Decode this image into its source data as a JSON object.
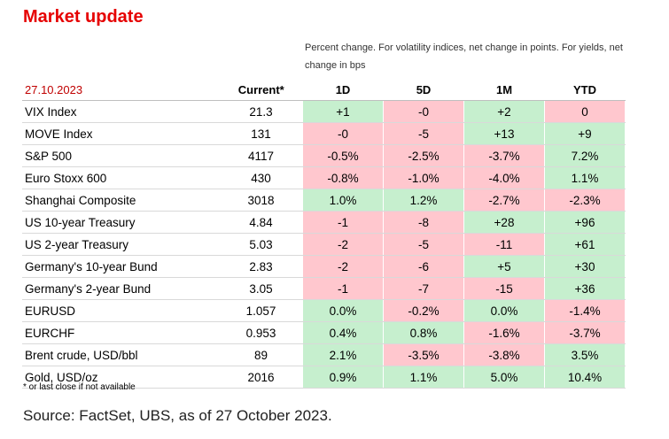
{
  "title": "Market update",
  "note": "Percent change. For volatility indices, net change in points. For yields,  net change in bps",
  "header": {
    "date": "27.10.2023",
    "current": "Current*",
    "periods": [
      "1D",
      "5D",
      "1M",
      "YTD"
    ]
  },
  "rows": [
    {
      "name": "VIX Index",
      "current": "21.3",
      "values": [
        "+1",
        "-0",
        "+2",
        "0"
      ],
      "signs": [
        "pos",
        "neg",
        "pos",
        "neg"
      ]
    },
    {
      "name": "MOVE Index",
      "current": "131",
      "values": [
        "-0",
        "-5",
        "+13",
        "+9"
      ],
      "signs": [
        "neg",
        "neg",
        "pos",
        "pos"
      ]
    },
    {
      "name": "S&P 500",
      "current": "4117",
      "values": [
        "-0.5%",
        "-2.5%",
        "-3.7%",
        "7.2%"
      ],
      "signs": [
        "neg",
        "neg",
        "neg",
        "pos"
      ]
    },
    {
      "name": "Euro Stoxx 600",
      "current": "430",
      "values": [
        "-0.8%",
        "-1.0%",
        "-4.0%",
        "1.1%"
      ],
      "signs": [
        "neg",
        "neg",
        "neg",
        "pos"
      ]
    },
    {
      "name": "Shanghai Composite",
      "current": "3018",
      "values": [
        "1.0%",
        "1.2%",
        "-2.7%",
        "-2.3%"
      ],
      "signs": [
        "pos",
        "pos",
        "neg",
        "neg"
      ]
    },
    {
      "name": "US 10-year Treasury",
      "current": "4.84",
      "values": [
        "-1",
        "-8",
        "+28",
        "+96"
      ],
      "signs": [
        "neg",
        "neg",
        "pos",
        "pos"
      ]
    },
    {
      "name": "US 2-year Treasury",
      "current": "5.03",
      "values": [
        "-2",
        "-5",
        "-11",
        "+61"
      ],
      "signs": [
        "neg",
        "neg",
        "neg",
        "pos"
      ]
    },
    {
      "name": "Germany's 10-year Bund",
      "current": "2.83",
      "values": [
        "-2",
        "-6",
        "+5",
        "+30"
      ],
      "signs": [
        "neg",
        "neg",
        "pos",
        "pos"
      ]
    },
    {
      "name": "Germany's 2-year Bund",
      "current": "3.05",
      "values": [
        "-1",
        "-7",
        "-15",
        "+36"
      ],
      "signs": [
        "neg",
        "neg",
        "neg",
        "pos"
      ]
    },
    {
      "name": "EURUSD",
      "current": "1.057",
      "values": [
        "0.0%",
        "-0.2%",
        "0.0%",
        "-1.4%"
      ],
      "signs": [
        "pos",
        "neg",
        "pos",
        "neg"
      ]
    },
    {
      "name": "EURCHF",
      "current": "0.953",
      "values": [
        "0.4%",
        "0.8%",
        "-1.6%",
        "-3.7%"
      ],
      "signs": [
        "pos",
        "pos",
        "neg",
        "neg"
      ]
    },
    {
      "name": "Brent crude, USD/bbl",
      "current": "89",
      "values": [
        "2.1%",
        "-3.5%",
        "-3.8%",
        "3.5%"
      ],
      "signs": [
        "pos",
        "neg",
        "neg",
        "pos"
      ]
    },
    {
      "name": "Gold,  USD/oz",
      "current": "2016",
      "values": [
        "0.9%",
        "1.1%",
        "5.0%",
        "10.4%"
      ],
      "signs": [
        "pos",
        "pos",
        "pos",
        "pos"
      ]
    }
  ],
  "colors": {
    "positive": "#c6efce",
    "negative": "#ffc7ce",
    "title": "#e60000",
    "date": "#c00000"
  },
  "footnote": "* or last close if not available",
  "source": "Source: FactSet, UBS, as of 27 October 2023."
}
